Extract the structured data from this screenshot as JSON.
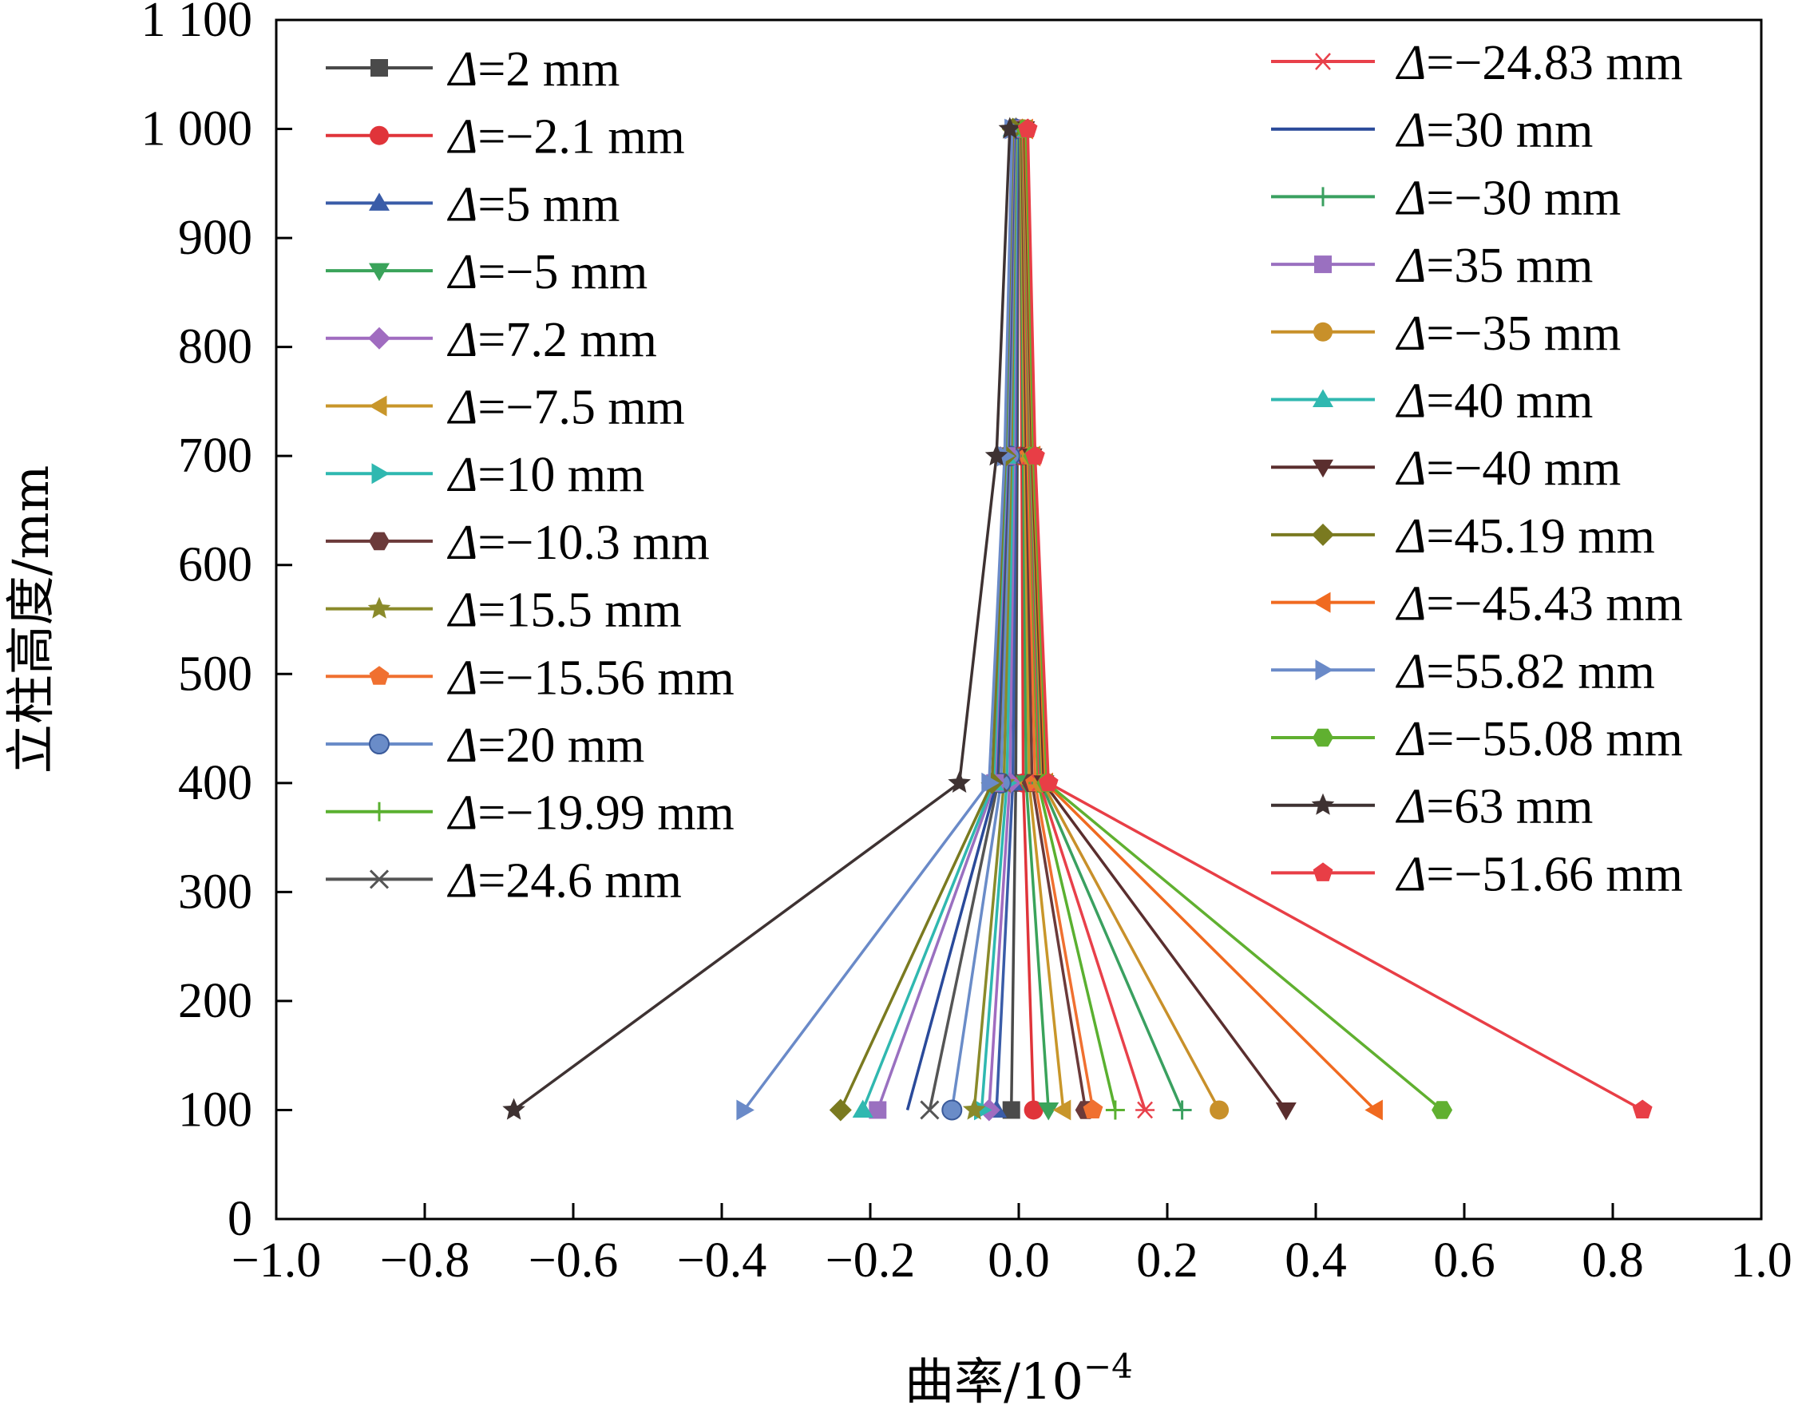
{
  "chart_data": {
    "type": "line",
    "xlabel": "曲率/10",
    "xlabel_sup": "−4",
    "ylabel": "立柱高度/mm",
    "xlim": [
      -1.0,
      1.0
    ],
    "ylim": [
      0,
      1100
    ],
    "xticks": [
      -1.0,
      -0.8,
      -0.6,
      -0.4,
      -0.2,
      0.0,
      0.2,
      0.4,
      0.6,
      0.8,
      1.0
    ],
    "xtick_labels": [
      "−1.0",
      "−0.8",
      "−0.6",
      "−0.4",
      "−0.2",
      "0.0",
      "0.2",
      "0.4",
      "0.6",
      "0.8",
      "1.0"
    ],
    "yticks": [
      0,
      100,
      200,
      300,
      400,
      500,
      600,
      700,
      800,
      900,
      1000,
      1100
    ],
    "ytick_labels": [
      "0",
      "100",
      "200",
      "300",
      "400",
      "500",
      "600",
      "700",
      "800",
      "900",
      "1 000",
      "1 100"
    ],
    "y": [
      100,
      400,
      700,
      1000
    ],
    "grid": false,
    "legend": "two columns, inside plot area, left and right",
    "series": [
      {
        "name": "Δ=2 mm",
        "color": "#4a4a4a",
        "marker": "square",
        "values": [
          -0.01,
          -0.004,
          -0.002,
          -0.001
        ]
      },
      {
        "name": "Δ=−2.1 mm",
        "color": "#e0343a",
        "marker": "circle",
        "values": [
          0.02,
          0.006,
          0.004,
          0.002
        ]
      },
      {
        "name": "Δ=5 mm",
        "color": "#3a5ca8",
        "marker": "triangle-up",
        "values": [
          -0.03,
          -0.008,
          -0.004,
          -0.002
        ]
      },
      {
        "name": "Δ=−5 mm",
        "color": "#3aa35a",
        "marker": "triangle-down",
        "values": [
          0.04,
          0.01,
          0.006,
          0.002
        ]
      },
      {
        "name": "Δ=7.2 mm",
        "color": "#a06cc0",
        "marker": "diamond",
        "values": [
          -0.04,
          -0.012,
          -0.006,
          -0.003
        ]
      },
      {
        "name": "Δ=−7.5 mm",
        "color": "#c8962a",
        "marker": "triangle-left",
        "values": [
          0.06,
          0.014,
          0.008,
          0.003
        ]
      },
      {
        "name": "Δ=10 mm",
        "color": "#2fb8b0",
        "marker": "triangle-right",
        "values": [
          -0.05,
          -0.016,
          -0.008,
          -0.003
        ]
      },
      {
        "name": "Δ=−10.3 mm",
        "color": "#6b3a3a",
        "marker": "hexagon",
        "values": [
          0.09,
          0.018,
          0.01,
          0.004
        ]
      },
      {
        "name": "Δ=15.5 mm",
        "color": "#8a8a2a",
        "marker": "star",
        "values": [
          -0.06,
          -0.02,
          -0.01,
          -0.004
        ]
      },
      {
        "name": "Δ=−15.56 mm",
        "color": "#f07030",
        "marker": "pentagon",
        "values": [
          0.1,
          0.022,
          0.012,
          0.005
        ]
      },
      {
        "name": "Δ=20 mm",
        "color": "#6a8cc8",
        "marker": "sphere",
        "values": [
          -0.09,
          -0.024,
          -0.012,
          -0.005
        ]
      },
      {
        "name": "Δ=−19.99 mm",
        "color": "#5ab030",
        "marker": "plus",
        "values": [
          0.13,
          0.026,
          0.014,
          0.005
        ]
      },
      {
        "name": "Δ=24.6 mm",
        "color": "#555555",
        "marker": "x",
        "values": [
          -0.12,
          -0.028,
          -0.014,
          -0.006
        ]
      },
      {
        "name": "Δ=−24.83 mm",
        "color": "#e8404a",
        "marker": "asterisk",
        "values": [
          0.17,
          0.028,
          0.015,
          0.006
        ]
      },
      {
        "name": "Δ=30 mm",
        "color": "#2a4a9a",
        "marker": "none",
        "values": [
          -0.15,
          -0.03,
          -0.015,
          -0.006
        ]
      },
      {
        "name": "Δ=−30 mm",
        "color": "#3aa060",
        "marker": "plus",
        "values": [
          0.22,
          0.03,
          0.016,
          0.007
        ]
      },
      {
        "name": "Δ=35 mm",
        "color": "#9a70c0",
        "marker": "square",
        "values": [
          -0.19,
          -0.032,
          -0.016,
          -0.007
        ]
      },
      {
        "name": "Δ=−35 mm",
        "color": "#c8902a",
        "marker": "circle",
        "values": [
          0.27,
          0.032,
          0.017,
          0.007
        ]
      },
      {
        "name": "Δ=40 mm",
        "color": "#30b8b0",
        "marker": "triangle-up",
        "values": [
          -0.21,
          -0.034,
          -0.017,
          -0.008
        ]
      },
      {
        "name": "Δ=−40 mm",
        "color": "#5a2e2e",
        "marker": "triangle-down",
        "values": [
          0.36,
          0.034,
          0.018,
          0.008
        ]
      },
      {
        "name": "Δ=45.19 mm",
        "color": "#7a7a20",
        "marker": "diamond",
        "values": [
          -0.24,
          -0.036,
          -0.018,
          -0.008
        ]
      },
      {
        "name": "Δ=−45.43 mm",
        "color": "#f06a20",
        "marker": "triangle-left",
        "values": [
          0.48,
          0.036,
          0.019,
          0.009
        ]
      },
      {
        "name": "Δ=55.82 mm",
        "color": "#6a8ac8",
        "marker": "triangle-right",
        "values": [
          -0.37,
          -0.04,
          -0.019,
          -0.009
        ]
      },
      {
        "name": "Δ=−55.08 mm",
        "color": "#60b030",
        "marker": "hexagon",
        "values": [
          0.57,
          0.038,
          0.02,
          0.01
        ]
      },
      {
        "name": "Δ=63 mm",
        "color": "#3e3232",
        "marker": "star",
        "values": [
          -0.68,
          -0.08,
          -0.03,
          -0.012
        ]
      },
      {
        "name": "Δ=−51.66 mm",
        "color": "#e83e46",
        "marker": "pentagon",
        "values": [
          0.84,
          0.04,
          0.022,
          0.012
        ]
      }
    ]
  }
}
